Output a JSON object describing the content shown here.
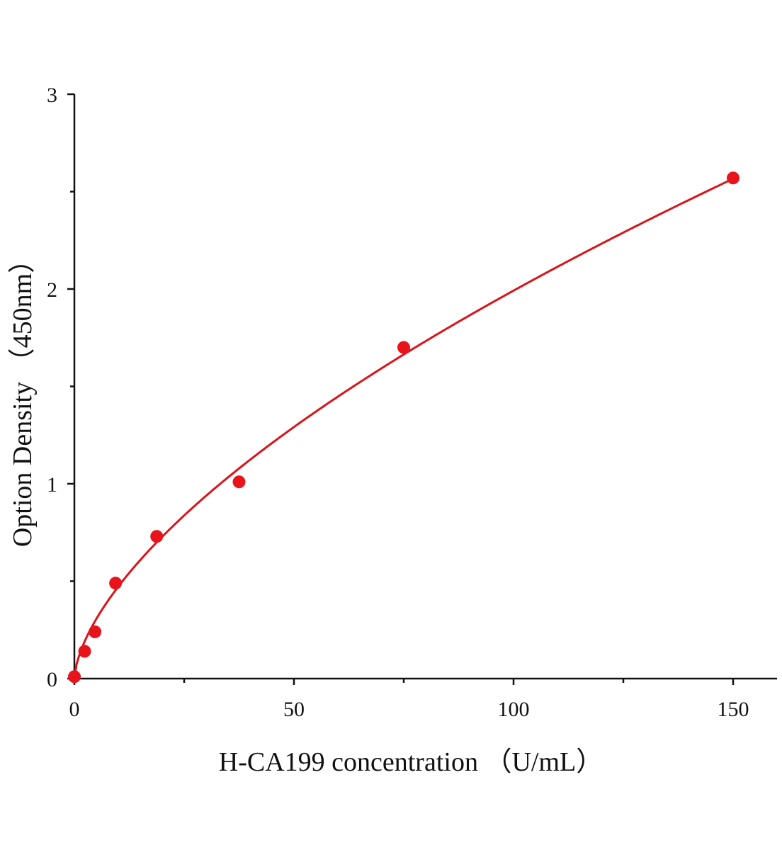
{
  "chart_data": {
    "type": "scatter",
    "title": "",
    "xlabel": "H-CA199 concentration （U/mL）",
    "ylabel": "Option Density （450nm）",
    "xlim": [
      0,
      160
    ],
    "ylim": [
      0,
      3
    ],
    "xticks": [
      0,
      50,
      100,
      150
    ],
    "xtick_labels": [
      "0",
      "50",
      "100",
      "150"
    ],
    "xminor": [
      25,
      75,
      125
    ],
    "yticks": [
      0,
      1,
      2,
      3
    ],
    "ytick_labels": [
      "0",
      "1",
      "2",
      "3"
    ],
    "yminor": [
      0.5,
      1.5,
      2.5
    ],
    "grid": false,
    "legend": "none",
    "points": {
      "x": [
        0,
        2.34,
        4.69,
        9.375,
        18.75,
        37.5,
        75,
        150
      ],
      "y": [
        0.01,
        0.14,
        0.24,
        0.49,
        0.73,
        1.01,
        1.7,
        2.57
      ]
    },
    "fit_curve": {
      "type": "power",
      "a": 0.112,
      "b": 0.625,
      "x_range": [
        0,
        150
      ]
    },
    "colors": {
      "points": "#e8141b",
      "curve": "#d9141b",
      "axis": "#111111"
    }
  }
}
